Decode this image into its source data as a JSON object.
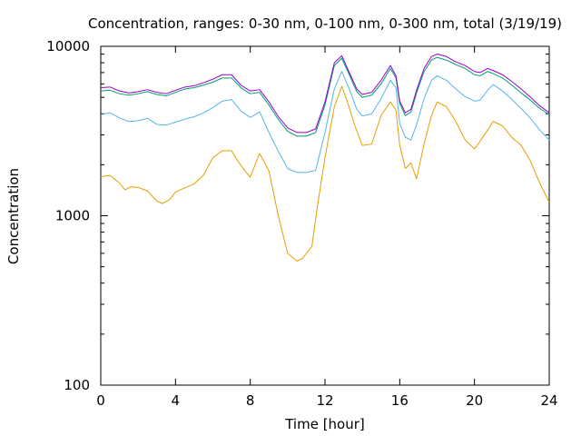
{
  "chart_data": {
    "type": "line",
    "title": "Concentration, ranges: 0-30 nm, 0-100 nm, 0-300 nm, total (3/19/19)",
    "xlabel": "Time [hour]",
    "ylabel": "Concentration",
    "xlim": [
      0,
      24
    ],
    "ylim": [
      100,
      10000
    ],
    "yscale": "log",
    "grid": false,
    "x_ticks": [
      "0",
      "4",
      "8",
      "12",
      "16",
      "20",
      "24"
    ],
    "y_ticks": [
      "100",
      "1000",
      "10000"
    ],
    "colors": {
      "0-30 nm": "#e69f00",
      "0-100 nm": "#56b4e9",
      "0-300 nm": "#009e73",
      "total": "#9400d3"
    },
    "series": [
      {
        "key": "range_0_30",
        "x": [
          0,
          0.5,
          1,
          1.3,
          1.6,
          2,
          2.5,
          3,
          3.3,
          3.7,
          4,
          4.5,
          5,
          5.5,
          6,
          6.5,
          7,
          7.3,
          7.7,
          8,
          8.5,
          9,
          9.5,
          10,
          10.5,
          10.8,
          11,
          11.3,
          11.6,
          12,
          12.5,
          12.9,
          13.2,
          13.6,
          14,
          14.5,
          15,
          15.5,
          15.8,
          16,
          16.3,
          16.6,
          16.9,
          17.3,
          17.7,
          18,
          18.5,
          19,
          19.5,
          20,
          20.3,
          20.7,
          21,
          21.5,
          22,
          22.5,
          23,
          23.5,
          24
        ],
        "values": [
          1700,
          1730,
          1560,
          1420,
          1480,
          1470,
          1400,
          1220,
          1180,
          1250,
          1380,
          1460,
          1540,
          1740,
          2200,
          2420,
          2420,
          2130,
          1850,
          1690,
          2330,
          1840,
          1000,
          600,
          540,
          560,
          600,
          660,
          1150,
          2200,
          4400,
          5800,
          4700,
          3400,
          2600,
          2650,
          3900,
          4700,
          4200,
          2600,
          1900,
          2050,
          1650,
          2650,
          3900,
          4700,
          4400,
          3600,
          2800,
          2480,
          2750,
          3200,
          3600,
          3400,
          2900,
          2600,
          2100,
          1550,
          1200
        ]
      },
      {
        "key": "range_0_100",
        "x": [
          0,
          0.5,
          1,
          1.5,
          2,
          2.5,
          3,
          3.5,
          4,
          4.5,
          5,
          5.5,
          6,
          6.5,
          7,
          7.5,
          8,
          8.5,
          9,
          9.5,
          10,
          10.5,
          11,
          11.5,
          12,
          12.5,
          12.9,
          13.3,
          13.7,
          14,
          14.5,
          15,
          15.5,
          15.8,
          16,
          16.3,
          16.6,
          16.9,
          17.3,
          17.7,
          18,
          18.5,
          19,
          19.5,
          20,
          20.3,
          20.7,
          21,
          21.5,
          22,
          22.5,
          23,
          23.5,
          24
        ],
        "values": [
          3950,
          4050,
          3780,
          3600,
          3640,
          3760,
          3460,
          3430,
          3560,
          3720,
          3840,
          4050,
          4350,
          4750,
          4850,
          4150,
          3800,
          4100,
          3100,
          2400,
          1900,
          1800,
          1800,
          1850,
          3100,
          5600,
          7100,
          5600,
          4250,
          3880,
          4000,
          4900,
          6300,
          5700,
          3500,
          2900,
          2800,
          3450,
          4900,
          6300,
          6700,
          6300,
          5600,
          5050,
          4750,
          4800,
          5500,
          5950,
          5450,
          4850,
          4300,
          3750,
          3200,
          2800
        ]
      },
      {
        "key": "range_0_300",
        "x": [
          0,
          0.5,
          1,
          1.5,
          2,
          2.5,
          3,
          3.5,
          4,
          4.5,
          5,
          5.5,
          6,
          6.5,
          7,
          7.5,
          8,
          8.5,
          9,
          9.5,
          10,
          10.5,
          11,
          11.5,
          12,
          12.5,
          12.9,
          13.3,
          13.7,
          14,
          14.5,
          15,
          15.5,
          15.8,
          16,
          16.3,
          16.6,
          16.9,
          17.3,
          17.7,
          18,
          18.5,
          19,
          19.5,
          20,
          20.3,
          20.7,
          21,
          21.5,
          22,
          22.5,
          23,
          23.5,
          24
        ],
        "values": [
          5450,
          5500,
          5250,
          5150,
          5250,
          5400,
          5200,
          5100,
          5350,
          5600,
          5700,
          5900,
          6150,
          6500,
          6500,
          5700,
          5250,
          5350,
          4500,
          3700,
          3150,
          2950,
          2950,
          3100,
          4500,
          7700,
          8500,
          6800,
          5400,
          5000,
          5150,
          6000,
          7400,
          6500,
          4600,
          3900,
          4100,
          5300,
          7100,
          8300,
          8600,
          8300,
          7800,
          7400,
          6800,
          6700,
          7100,
          6900,
          6500,
          5900,
          5300,
          4800,
          4300,
          3950
        ]
      },
      {
        "key": "total",
        "x": [
          0,
          0.5,
          1,
          1.5,
          2,
          2.5,
          3,
          3.5,
          4,
          4.5,
          5,
          5.5,
          6,
          6.5,
          7,
          7.5,
          8,
          8.5,
          9,
          9.5,
          10,
          10.5,
          11,
          11.5,
          12,
          12.5,
          12.9,
          13.3,
          13.7,
          14,
          14.5,
          15,
          15.5,
          15.8,
          16,
          16.3,
          16.6,
          16.9,
          17.3,
          17.7,
          18,
          18.5,
          19,
          19.5,
          20,
          20.3,
          20.7,
          21,
          21.5,
          22,
          22.5,
          23,
          23.5,
          24
        ],
        "values": [
          5700,
          5750,
          5450,
          5300,
          5400,
          5550,
          5350,
          5250,
          5500,
          5750,
          5850,
          6100,
          6400,
          6800,
          6800,
          5900,
          5450,
          5550,
          4700,
          3850,
          3300,
          3100,
          3100,
          3250,
          4700,
          8000,
          8800,
          7000,
          5600,
          5200,
          5350,
          6300,
          7700,
          6700,
          4750,
          4050,
          4250,
          5500,
          7400,
          8700,
          9000,
          8700,
          8100,
          7700,
          7100,
          7000,
          7400,
          7200,
          6800,
          6200,
          5600,
          5000,
          4450,
          4050
        ]
      }
    ]
  }
}
